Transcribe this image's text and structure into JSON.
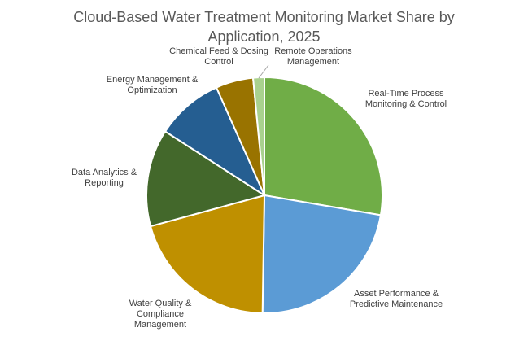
{
  "chart_data": {
    "type": "pie",
    "title_lines": [
      "Cloud-Based Water Treatment Monitoring Market Share by",
      "Application, 2025"
    ],
    "slices": [
      {
        "label_lines": [
          "Real-Time Process",
          "Monitoring & Control"
        ],
        "value": 27,
        "color": "#70AD47"
      },
      {
        "label_lines": [
          "Asset Performance &",
          "Predictive Maintenance"
        ],
        "value": 22,
        "color": "#5B9BD5"
      },
      {
        "label_lines": [
          "Water Quality &",
          "Compliance",
          "Management"
        ],
        "value": 20,
        "color": "#BF9000"
      },
      {
        "label_lines": [
          "Data Analytics &",
          "Reporting"
        ],
        "value": 13,
        "color": "#43682B"
      },
      {
        "label_lines": [
          "Energy Management &",
          "Optimization"
        ],
        "value": 9,
        "color": "#255E91"
      },
      {
        "label_lines": [
          "Chemical Feed & Dosing",
          "Control"
        ],
        "value": 5,
        "color": "#997300"
      },
      {
        "label_lines": [
          "Remote Operations",
          "Management"
        ],
        "value": 1.5,
        "color": "#A9D18E"
      }
    ],
    "start_angle": "12 o'clock",
    "direction": "clockwise",
    "legend": "none"
  }
}
